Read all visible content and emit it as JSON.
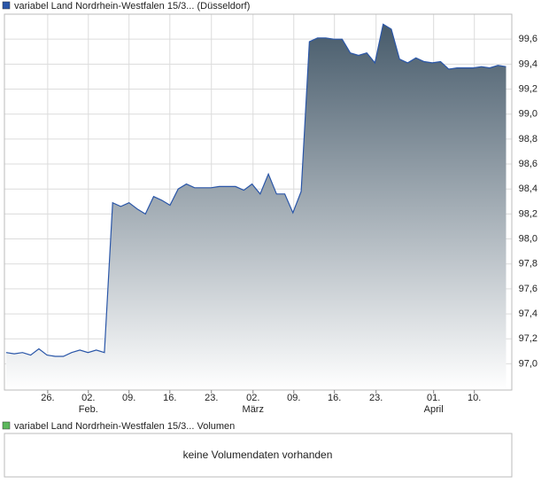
{
  "chart_data": {
    "type": "area",
    "series": [
      {
        "name": "variabel Land Nordrhein-Westfalen 15/3... (Düsseldorf)",
        "color": "#2a56a8",
        "x": [
          0,
          1,
          2,
          3,
          4,
          5,
          6,
          7,
          8,
          9,
          10,
          11,
          12,
          13,
          14,
          15,
          16,
          17,
          18,
          19,
          20,
          21,
          22,
          23,
          24,
          25,
          26,
          27,
          28,
          29,
          30,
          31,
          32,
          33,
          34,
          35,
          36,
          37,
          38,
          39,
          40,
          41,
          42,
          43,
          44,
          45,
          46,
          47,
          48,
          49,
          50,
          51,
          52,
          53,
          54,
          55,
          56,
          57,
          58,
          59,
          60,
          61
        ],
        "values": [
          97.09,
          97.08,
          97.09,
          97.07,
          97.12,
          97.07,
          97.06,
          97.06,
          97.09,
          97.11,
          97.09,
          97.11,
          97.09,
          98.29,
          98.26,
          98.29,
          98.24,
          98.2,
          98.34,
          98.31,
          98.27,
          98.4,
          98.44,
          98.41,
          98.41,
          98.41,
          98.42,
          98.42,
          98.42,
          98.39,
          98.44,
          98.36,
          98.52,
          98.36,
          98.36,
          98.21,
          98.38,
          99.58,
          99.61,
          99.61,
          99.6,
          99.6,
          99.49,
          99.47,
          99.49,
          99.41,
          99.72,
          99.68,
          99.44,
          99.41,
          99.45,
          99.42,
          99.41,
          99.42,
          99.36,
          99.37,
          99.37,
          99.37,
          99.38,
          99.37,
          99.39,
          99.38
        ]
      }
    ],
    "xlim": [
      -0.2,
      61.7
    ],
    "xticks": [
      {
        "value": 5.08,
        "label": "26."
      },
      {
        "value": 10.04,
        "label": "02."
      },
      {
        "value": 15.0,
        "label": "09."
      },
      {
        "value": 19.98,
        "label": "16."
      },
      {
        "value": 25.05,
        "label": "23."
      },
      {
        "value": 30.13,
        "label": "02."
      },
      {
        "value": 35.1,
        "label": "09."
      },
      {
        "value": 40.06,
        "label": "16."
      },
      {
        "value": 45.14,
        "label": "23."
      },
      {
        "value": 52.16,
        "label": "01."
      },
      {
        "value": 57.13,
        "label": "10."
      }
    ],
    "month_labels": [
      {
        "value": 10.04,
        "label": "Feb."
      },
      {
        "value": 30.13,
        "label": "März"
      },
      {
        "value": 52.16,
        "label": "April"
      }
    ],
    "ylim": [
      96.79,
      99.8
    ],
    "yticks": [
      {
        "value": 97.0,
        "label": "97,0"
      },
      {
        "value": 97.2,
        "label": "97,2"
      },
      {
        "value": 97.4,
        "label": "97,4"
      },
      {
        "value": 97.6,
        "label": "97,6"
      },
      {
        "value": 97.8,
        "label": "97,8"
      },
      {
        "value": 98.0,
        "label": "98,0"
      },
      {
        "value": 98.2,
        "label": "98,2"
      },
      {
        "value": 98.4,
        "label": "98,4"
      },
      {
        "value": 98.6,
        "label": "98,6"
      },
      {
        "value": 98.8,
        "label": "98,8"
      },
      {
        "value": 99.0,
        "label": "99,0"
      },
      {
        "value": 99.2,
        "label": "99,2"
      },
      {
        "value": 99.4,
        "label": "99,4"
      },
      {
        "value": 99.6,
        "label": "99,6"
      }
    ],
    "grid": true,
    "volume_panel": {
      "legend": "variabel Land Nordrhein-Westfalen 15/3... Volumen",
      "color": "#5cb85c",
      "message": "keine Volumendaten vorhanden"
    }
  }
}
